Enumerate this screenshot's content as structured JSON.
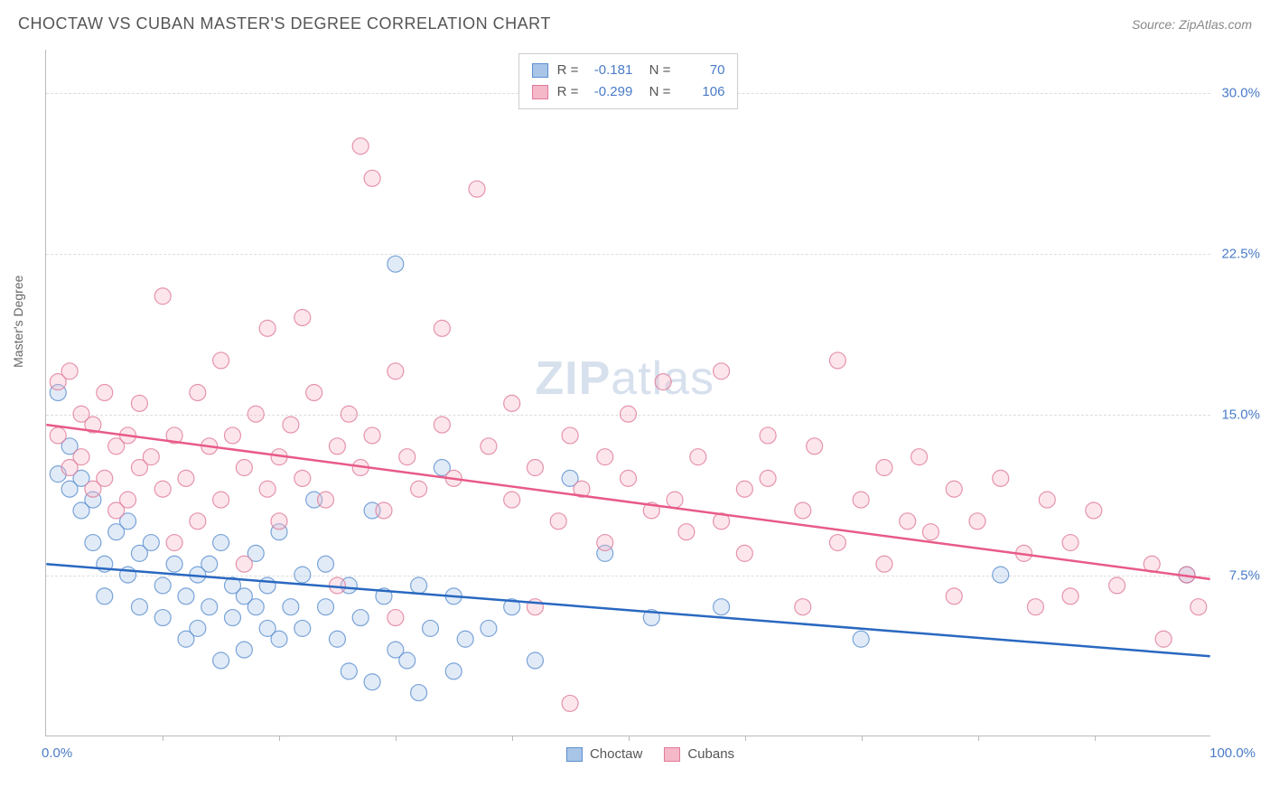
{
  "title": "CHOCTAW VS CUBAN MASTER'S DEGREE CORRELATION CHART",
  "source": "Source: ZipAtlas.com",
  "watermark": "ZIPatlas",
  "y_axis_title": "Master's Degree",
  "chart": {
    "type": "scatter",
    "xlim": [
      0,
      100
    ],
    "ylim": [
      0,
      32
    ],
    "x_label_min": "0.0%",
    "x_label_max": "100.0%",
    "x_ticks": [
      10,
      20,
      30,
      40,
      50,
      60,
      70,
      80,
      90
    ],
    "y_gridlines": [
      {
        "value": 7.5,
        "label": "7.5%"
      },
      {
        "value": 15.0,
        "label": "15.0%"
      },
      {
        "value": 22.5,
        "label": "22.5%"
      },
      {
        "value": 30.0,
        "label": "30.0%"
      }
    ],
    "background_color": "#ffffff",
    "grid_color": "#dddddd",
    "axis_color": "#bbbbbb",
    "tick_label_color": "#4a7bc8",
    "marker_radius": 9,
    "marker_fill_opacity": 0.35,
    "marker_stroke_opacity": 0.8,
    "marker_stroke_width": 1.2,
    "trend_line_width": 2.5
  },
  "series": [
    {
      "name": "Choctaw",
      "color_fill": "#a8c5e8",
      "color_stroke": "#5b8fd0",
      "color_line": "#2968c0",
      "R": "-0.181",
      "N": "70",
      "trend": {
        "x1": 0,
        "y1": 8.0,
        "x2": 100,
        "y2": 3.7
      },
      "points": [
        [
          1,
          12.2
        ],
        [
          1,
          16.0
        ],
        [
          2,
          11.5
        ],
        [
          2,
          13.5
        ],
        [
          3,
          10.5
        ],
        [
          3,
          12.0
        ],
        [
          4,
          11.0
        ],
        [
          4,
          9.0
        ],
        [
          5,
          8.0
        ],
        [
          5,
          6.5
        ],
        [
          6,
          9.5
        ],
        [
          7,
          7.5
        ],
        [
          7,
          10.0
        ],
        [
          8,
          6.0
        ],
        [
          8,
          8.5
        ],
        [
          9,
          9.0
        ],
        [
          10,
          7.0
        ],
        [
          10,
          5.5
        ],
        [
          11,
          8.0
        ],
        [
          12,
          6.5
        ],
        [
          12,
          4.5
        ],
        [
          13,
          7.5
        ],
        [
          13,
          5.0
        ],
        [
          14,
          8.0
        ],
        [
          14,
          6.0
        ],
        [
          15,
          3.5
        ],
        [
          15,
          9.0
        ],
        [
          16,
          7.0
        ],
        [
          16,
          5.5
        ],
        [
          17,
          6.5
        ],
        [
          17,
          4.0
        ],
        [
          18,
          8.5
        ],
        [
          18,
          6.0
        ],
        [
          19,
          5.0
        ],
        [
          19,
          7.0
        ],
        [
          20,
          4.5
        ],
        [
          20,
          9.5
        ],
        [
          21,
          6.0
        ],
        [
          22,
          7.5
        ],
        [
          22,
          5.0
        ],
        [
          23,
          11.0
        ],
        [
          24,
          8.0
        ],
        [
          24,
          6.0
        ],
        [
          25,
          4.5
        ],
        [
          26,
          7.0
        ],
        [
          26,
          3.0
        ],
        [
          27,
          5.5
        ],
        [
          28,
          10.5
        ],
        [
          28,
          2.5
        ],
        [
          29,
          6.5
        ],
        [
          30,
          4.0
        ],
        [
          30,
          22.0
        ],
        [
          31,
          3.5
        ],
        [
          32,
          7.0
        ],
        [
          32,
          2.0
        ],
        [
          33,
          5.0
        ],
        [
          34,
          12.5
        ],
        [
          35,
          6.5
        ],
        [
          35,
          3.0
        ],
        [
          36,
          4.5
        ],
        [
          38,
          5.0
        ],
        [
          40,
          6.0
        ],
        [
          42,
          3.5
        ],
        [
          45,
          12.0
        ],
        [
          48,
          8.5
        ],
        [
          52,
          5.5
        ],
        [
          58,
          6.0
        ],
        [
          70,
          4.5
        ],
        [
          82,
          7.5
        ],
        [
          98,
          7.5
        ]
      ]
    },
    {
      "name": "Cubans",
      "color_fill": "#f5b8c8",
      "color_stroke": "#e07a98",
      "color_line": "#e85a88",
      "R": "-0.299",
      "N": "106",
      "trend": {
        "x1": 0,
        "y1": 14.5,
        "x2": 100,
        "y2": 7.3
      },
      "points": [
        [
          1,
          16.5
        ],
        [
          1,
          14.0
        ],
        [
          2,
          17.0
        ],
        [
          2,
          12.5
        ],
        [
          3,
          13.0
        ],
        [
          3,
          15.0
        ],
        [
          4,
          11.5
        ],
        [
          4,
          14.5
        ],
        [
          5,
          12.0
        ],
        [
          5,
          16.0
        ],
        [
          6,
          13.5
        ],
        [
          6,
          10.5
        ],
        [
          7,
          14.0
        ],
        [
          7,
          11.0
        ],
        [
          8,
          12.5
        ],
        [
          8,
          15.5
        ],
        [
          9,
          13.0
        ],
        [
          10,
          20.5
        ],
        [
          10,
          11.5
        ],
        [
          11,
          14.0
        ],
        [
          11,
          9.0
        ],
        [
          12,
          12.0
        ],
        [
          13,
          16.0
        ],
        [
          13,
          10.0
        ],
        [
          14,
          13.5
        ],
        [
          15,
          11.0
        ],
        [
          15,
          17.5
        ],
        [
          16,
          14.0
        ],
        [
          17,
          12.5
        ],
        [
          17,
          8.0
        ],
        [
          18,
          15.0
        ],
        [
          19,
          11.5
        ],
        [
          19,
          19.0
        ],
        [
          20,
          13.0
        ],
        [
          20,
          10.0
        ],
        [
          21,
          14.5
        ],
        [
          22,
          19.5
        ],
        [
          22,
          12.0
        ],
        [
          23,
          16.0
        ],
        [
          24,
          11.0
        ],
        [
          25,
          13.5
        ],
        [
          25,
          7.0
        ],
        [
          26,
          15.0
        ],
        [
          27,
          27.5
        ],
        [
          27,
          12.5
        ],
        [
          28,
          14.0
        ],
        [
          28,
          26.0
        ],
        [
          29,
          10.5
        ],
        [
          30,
          17.0
        ],
        [
          30,
          5.5
        ],
        [
          31,
          13.0
        ],
        [
          32,
          11.5
        ],
        [
          34,
          19.0
        ],
        [
          34,
          14.5
        ],
        [
          35,
          12.0
        ],
        [
          37,
          25.5
        ],
        [
          38,
          13.5
        ],
        [
          40,
          11.0
        ],
        [
          40,
          15.5
        ],
        [
          42,
          12.5
        ],
        [
          42,
          6.0
        ],
        [
          44,
          10.0
        ],
        [
          45,
          14.0
        ],
        [
          45,
          1.5
        ],
        [
          46,
          11.5
        ],
        [
          48,
          13.0
        ],
        [
          48,
          9.0
        ],
        [
          50,
          12.0
        ],
        [
          50,
          15.0
        ],
        [
          52,
          10.5
        ],
        [
          53,
          16.5
        ],
        [
          54,
          11.0
        ],
        [
          55,
          9.5
        ],
        [
          56,
          13.0
        ],
        [
          58,
          10.0
        ],
        [
          58,
          17.0
        ],
        [
          60,
          11.5
        ],
        [
          60,
          8.5
        ],
        [
          62,
          14.0
        ],
        [
          62,
          12.0
        ],
        [
          65,
          6.0
        ],
        [
          65,
          10.5
        ],
        [
          66,
          13.5
        ],
        [
          68,
          9.0
        ],
        [
          68,
          17.5
        ],
        [
          70,
          11.0
        ],
        [
          72,
          12.5
        ],
        [
          72,
          8.0
        ],
        [
          74,
          10.0
        ],
        [
          75,
          13.0
        ],
        [
          76,
          9.5
        ],
        [
          78,
          11.5
        ],
        [
          78,
          6.5
        ],
        [
          80,
          10.0
        ],
        [
          82,
          12.0
        ],
        [
          84,
          8.5
        ],
        [
          85,
          6.0
        ],
        [
          86,
          11.0
        ],
        [
          88,
          9.0
        ],
        [
          88,
          6.5
        ],
        [
          90,
          10.5
        ],
        [
          92,
          7.0
        ],
        [
          95,
          8.0
        ],
        [
          96,
          4.5
        ],
        [
          98,
          7.5
        ],
        [
          99,
          6.0
        ]
      ]
    }
  ],
  "legend_bottom": [
    {
      "label": "Choctaw",
      "fill": "#a8c5e8",
      "stroke": "#5b8fd0"
    },
    {
      "label": "Cubans",
      "fill": "#f5b8c8",
      "stroke": "#e07a98"
    }
  ]
}
